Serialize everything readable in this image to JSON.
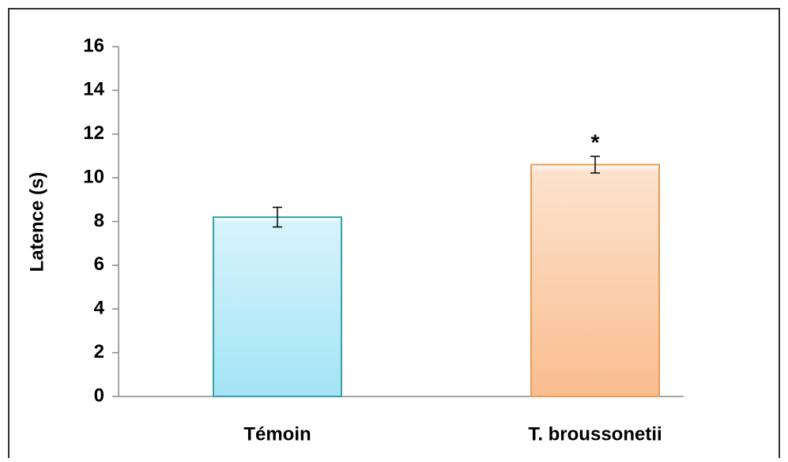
{
  "chart_data": {
    "type": "bar",
    "ylabel": "Latence (s)",
    "categories": [
      "Témoin",
      "T. broussonetii"
    ],
    "values": [
      8.2,
      10.6
    ],
    "errors": [
      0.45,
      0.38
    ],
    "colors": [
      "#a3e4f6",
      "#f9bd8f"
    ],
    "edgecolors": [
      "#3a9fa6",
      "#eb9a55"
    ],
    "ylim": [
      0,
      16
    ],
    "yticks": [
      0,
      2,
      4,
      6,
      8,
      10,
      12,
      14,
      16
    ],
    "grid": false,
    "annotations": [
      {
        "text": "*",
        "x": "T. broussonetii"
      }
    ]
  }
}
